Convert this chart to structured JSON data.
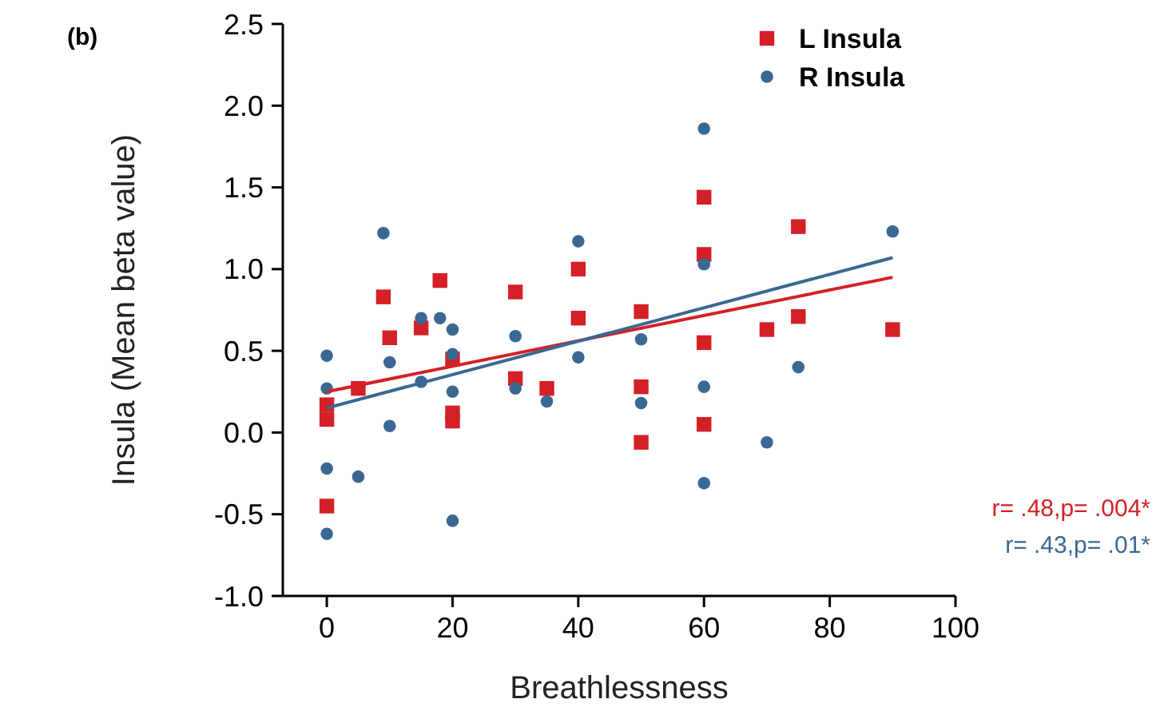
{
  "chart_data": {
    "type": "scatter",
    "title": "(b)",
    "xlabel": "Breathlessness",
    "ylabel": "Insula (Mean beta value)",
    "xlim": [
      -7,
      100
    ],
    "xticks": [
      0,
      20,
      40,
      60,
      80,
      100
    ],
    "ylim": [
      -1,
      2.5
    ],
    "yticks": [
      {
        "value": -1,
        "label": "-1.0"
      },
      {
        "value": -0.5,
        "label": "-0.5"
      },
      {
        "value": 0,
        "label": "0.0"
      },
      {
        "value": 0.5,
        "label": "0.5"
      },
      {
        "value": 1,
        "label": "1.0"
      },
      {
        "value": 1.5,
        "label": "1.5"
      },
      {
        "value": 2,
        "label": "2.0"
      },
      {
        "value": 2.5,
        "label": "2.5"
      }
    ],
    "grid": false,
    "legend": "top right",
    "annotations": [
      "r= .48,p= .004*",
      "r= .43,p= .01*"
    ],
    "series": [
      {
        "name": "L Insula",
        "color": "#d42027",
        "marker": "square",
        "x": [
          0,
          0,
          0,
          5,
          9,
          10,
          15,
          18,
          20,
          20,
          20,
          30,
          30,
          35,
          40,
          40,
          50,
          50,
          50,
          60,
          60,
          60,
          60,
          70,
          75,
          75,
          90
        ],
        "values": [
          -0.45,
          0.08,
          0.17,
          0.27,
          0.83,
          0.58,
          0.64,
          0.93,
          0.45,
          0.12,
          0.07,
          0.86,
          0.33,
          0.27,
          1.0,
          0.7,
          0.74,
          0.28,
          -0.06,
          1.44,
          1.09,
          0.55,
          0.05,
          0.63,
          1.26,
          0.71,
          0.63
        ]
      },
      {
        "name": "R Insula",
        "color": "#3a6892",
        "marker": "circle",
        "x": [
          0,
          0,
          0,
          0,
          5,
          9,
          10,
          10,
          15,
          15,
          18,
          20,
          20,
          20,
          20,
          30,
          30,
          35,
          40,
          40,
          50,
          50,
          60,
          60,
          60,
          60,
          70,
          75,
          90
        ],
        "values": [
          0.47,
          0.27,
          -0.22,
          -0.62,
          -0.27,
          1.22,
          0.43,
          0.04,
          0.31,
          0.7,
          0.7,
          0.63,
          0.48,
          0.25,
          -0.54,
          0.59,
          0.27,
          0.19,
          1.17,
          0.46,
          0.57,
          0.18,
          1.86,
          1.03,
          0.28,
          -0.31,
          -0.06,
          0.4,
          1.23
        ]
      },
      {
        "type": "line",
        "color": "#d42027",
        "x": [
          0,
          90
        ],
        "values": [
          0.25,
          0.95
        ]
      },
      {
        "type": "line",
        "color": "#3a6892",
        "x": [
          0,
          90
        ],
        "values": [
          0.15,
          1.07
        ]
      }
    ]
  }
}
